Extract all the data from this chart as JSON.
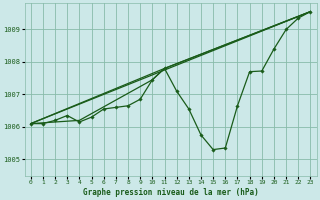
{
  "title": "Graphe pression niveau de la mer (hPa)",
  "bg_color": "#cce8e8",
  "grid_color": "#88bbaa",
  "line_color": "#1a5c1a",
  "marker_color": "#1a5c1a",
  "xlim": [
    -0.5,
    23.5
  ],
  "ylim": [
    1004.5,
    1009.8
  ],
  "yticks": [
    1005,
    1006,
    1007,
    1008,
    1009
  ],
  "xticks": [
    0,
    1,
    2,
    3,
    4,
    5,
    6,
    7,
    8,
    9,
    10,
    11,
    12,
    13,
    14,
    15,
    16,
    17,
    18,
    19,
    20,
    21,
    22,
    23
  ],
  "series1": [
    [
      0,
      1006.1
    ],
    [
      1,
      1006.1
    ],
    [
      2,
      1006.2
    ],
    [
      3,
      1006.35
    ],
    [
      4,
      1006.15
    ],
    [
      5,
      1006.3
    ],
    [
      6,
      1006.55
    ],
    [
      7,
      1006.6
    ],
    [
      8,
      1006.65
    ],
    [
      9,
      1006.85
    ],
    [
      10,
      1007.45
    ],
    [
      11,
      1007.8
    ],
    [
      12,
      1007.1
    ],
    [
      13,
      1006.55
    ],
    [
      14,
      1005.75
    ],
    [
      15,
      1005.3
    ],
    [
      16,
      1005.35
    ],
    [
      17,
      1006.65
    ],
    [
      18,
      1007.7
    ],
    [
      19,
      1007.72
    ],
    [
      20,
      1008.4
    ],
    [
      21,
      1009.0
    ],
    [
      22,
      1009.35
    ],
    [
      23,
      1009.55
    ]
  ],
  "series2": [
    [
      0,
      1006.1
    ],
    [
      4,
      1006.2
    ],
    [
      10,
      1007.45
    ],
    [
      11,
      1007.8
    ],
    [
      23,
      1009.55
    ]
  ],
  "series3": [
    [
      0,
      1006.1
    ],
    [
      11,
      1007.8
    ],
    [
      23,
      1009.55
    ]
  ],
  "series4": [
    [
      0,
      1006.1
    ],
    [
      23,
      1009.55
    ]
  ]
}
